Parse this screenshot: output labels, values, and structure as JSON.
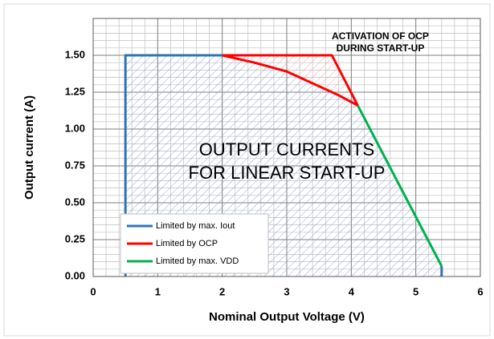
{
  "chart_data": {
    "type": "line",
    "xlabel": "Nominal Output Voltage (V)",
    "ylabel": "Output current (A)",
    "xlim": [
      0,
      6
    ],
    "xticks": [
      0,
      1,
      2,
      3,
      4,
      5,
      6
    ],
    "ylim": [
      0,
      1.75
    ],
    "yticks": [
      {
        "value": 0,
        "label": "0.00"
      },
      {
        "value": 0.25,
        "label": "0.25"
      },
      {
        "value": 0.5,
        "label": "0.50"
      },
      {
        "value": 0.75,
        "label": "0.75"
      },
      {
        "value": 1,
        "label": "1.00"
      },
      {
        "value": 1.25,
        "label": "1.25"
      },
      {
        "value": 1.5,
        "label": "1.50"
      }
    ],
    "grid": true,
    "legend": "lower left",
    "series": [
      {
        "name": "Limited by max. Iout",
        "color": "#2e75b6",
        "x": [
          0.5,
          0.5,
          2.0,
          null,
          5.4,
          5.4
        ],
        "values": [
          0,
          1.5,
          1.5,
          null,
          0.07,
          0
        ]
      },
      {
        "name": "Limited by OCP",
        "color": "#ff0000",
        "x": [
          2.0,
          3.7,
          4.1,
          null,
          2.0,
          2.5,
          3.0,
          3.5,
          3.8,
          4.1
        ],
        "values": [
          1.5,
          1.5,
          1.16,
          null,
          1.5,
          1.45,
          1.39,
          1.29,
          1.23,
          1.16
        ]
      },
      {
        "name": "Limited by max. VDD",
        "color": "#00b050",
        "x": [
          4.1,
          5.4
        ],
        "values": [
          1.16,
          0.07
        ]
      }
    ],
    "annotations": [
      "ACTIVATION OF OCP",
      "DURING START-UP",
      "OUTPUT CURRENTS",
      "FOR LINEAR START-UP"
    ]
  }
}
